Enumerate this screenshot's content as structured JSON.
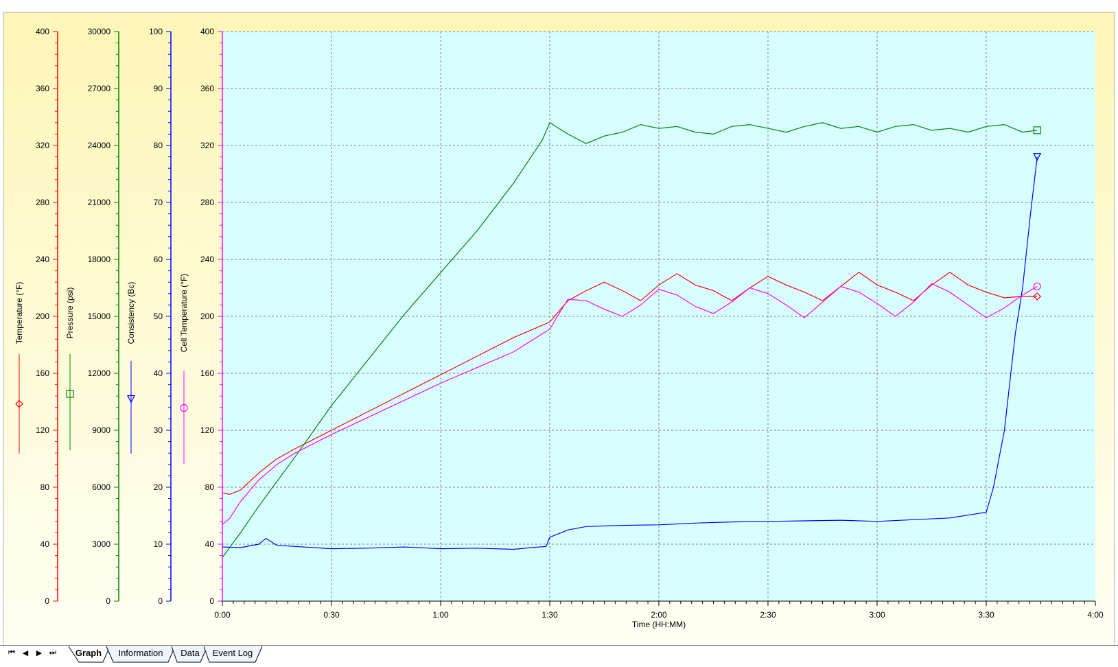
{
  "chart_data": {
    "type": "line",
    "xlabel": "Time (HH:MM)",
    "x_ticks": [
      "0:00",
      "0:30",
      "1:00",
      "1:30",
      "2:00",
      "2:30",
      "3:00",
      "3:30",
      "4:00"
    ],
    "x_range_minutes": [
      0,
      240
    ],
    "axes": [
      {
        "name": "Temperature (°F)",
        "color": "#ff0000",
        "range": [
          0,
          400
        ],
        "ticks": [
          "0",
          "40",
          "80",
          "120",
          "160",
          "200",
          "240",
          "280",
          "320",
          "360",
          "400"
        ],
        "marker": "diamond"
      },
      {
        "name": "Pressure (psi)",
        "color": "#008000",
        "range": [
          0,
          30000
        ],
        "ticks": [
          "0",
          "3000",
          "6000",
          "9000",
          "12000",
          "15000",
          "18000",
          "21000",
          "24000",
          "27000",
          "30000"
        ],
        "marker": "square"
      },
      {
        "name": "Consistency (Bc)",
        "color": "#0000ff",
        "range": [
          0,
          100
        ],
        "ticks": [
          "0",
          "10",
          "20",
          "30",
          "40",
          "50",
          "60",
          "70",
          "80",
          "90",
          "100"
        ],
        "marker": "triangle"
      },
      {
        "name": "Cell Temperature (°F)",
        "color": "#ff00ff",
        "range": [
          0,
          400
        ],
        "ticks": [
          "0",
          "40",
          "80",
          "120",
          "160",
          "200",
          "240",
          "280",
          "320",
          "360",
          "400"
        ],
        "marker": "circle"
      }
    ],
    "series": [
      {
        "name": "Temperature (°F)",
        "axis": 0,
        "color": "#ff0000",
        "x": [
          0,
          2,
          5,
          10,
          15,
          20,
          30,
          40,
          50,
          60,
          70,
          80,
          90,
          95,
          100,
          105,
          110,
          115,
          120,
          125,
          130,
          135,
          140,
          145,
          150,
          155,
          160,
          165,
          170,
          175,
          180,
          185,
          190,
          195,
          200,
          205,
          210,
          215,
          220,
          224
        ],
        "y": [
          76,
          75,
          78,
          90,
          100,
          107,
          120,
          133,
          146,
          159,
          172,
          185,
          196,
          211,
          218,
          224,
          218,
          211,
          222,
          230,
          222,
          218,
          211,
          220,
          228,
          222,
          217,
          211,
          221,
          231,
          222,
          217,
          211,
          222,
          231,
          222,
          217,
          213,
          214,
          214
        ]
      },
      {
        "name": "Pressure (psi)",
        "axis": 1,
        "color": "#008000",
        "x": [
          0,
          5,
          10,
          20,
          30,
          40,
          50,
          60,
          70,
          80,
          88,
          90,
          95,
          100,
          105,
          110,
          115,
          120,
          125,
          130,
          135,
          140,
          145,
          150,
          155,
          160,
          165,
          170,
          175,
          180,
          185,
          190,
          195,
          200,
          205,
          210,
          215,
          220,
          224
        ],
        "y": [
          2300,
          3600,
          5000,
          7600,
          10300,
          12700,
          15100,
          17300,
          19500,
          22000,
          24300,
          25200,
          24600,
          24100,
          24500,
          24700,
          25100,
          24900,
          25000,
          24700,
          24600,
          25000,
          25100,
          24900,
          24700,
          25000,
          25200,
          24900,
          25000,
          24700,
          25000,
          25100,
          24800,
          24900,
          24700,
          25000,
          25100,
          24700,
          24800
        ]
      },
      {
        "name": "Consistency (Bc)",
        "axis": 2,
        "color": "#0000ff",
        "x": [
          0,
          5,
          10,
          12,
          15,
          20,
          30,
          40,
          50,
          60,
          70,
          80,
          85,
          89,
          90,
          95,
          100,
          110,
          120,
          130,
          140,
          150,
          160,
          170,
          180,
          190,
          200,
          205,
          210,
          212,
          215,
          218,
          220,
          222,
          224
        ],
        "y": [
          9.5,
          9.4,
          10,
          11,
          9.8,
          9.6,
          9.2,
          9.3,
          9.5,
          9.2,
          9.3,
          9.1,
          9.4,
          9.6,
          11.2,
          12.5,
          13.1,
          13.3,
          13.4,
          13.7,
          13.9,
          14,
          14.1,
          14.2,
          14,
          14.3,
          14.6,
          15.1,
          15.6,
          20,
          30,
          47,
          55,
          67,
          78
        ]
      },
      {
        "name": "Cell Temperature (°F)",
        "axis": 3,
        "color": "#ff00ff",
        "x": [
          0,
          2,
          5,
          10,
          15,
          20,
          30,
          40,
          50,
          60,
          70,
          80,
          90,
          95,
          100,
          105,
          110,
          115,
          120,
          125,
          130,
          135,
          140,
          145,
          150,
          155,
          160,
          165,
          170,
          175,
          180,
          185,
          190,
          195,
          200,
          205,
          210,
          215,
          220,
          224
        ],
        "y": [
          54,
          58,
          70,
          85,
          96,
          104,
          117,
          129,
          141,
          153,
          164,
          175,
          191,
          212,
          211,
          205,
          200,
          208,
          219,
          215,
          207,
          202,
          210,
          220,
          216,
          208,
          199,
          210,
          221,
          217,
          209,
          200,
          210,
          223,
          217,
          208,
          199,
          206,
          215,
          221
        ]
      }
    ]
  },
  "tabs": {
    "nav": [
      "⏮",
      "◀",
      "▶",
      "⏭"
    ],
    "items": [
      "Graph",
      "Information",
      "Data",
      "Event Log"
    ],
    "active": 0
  }
}
